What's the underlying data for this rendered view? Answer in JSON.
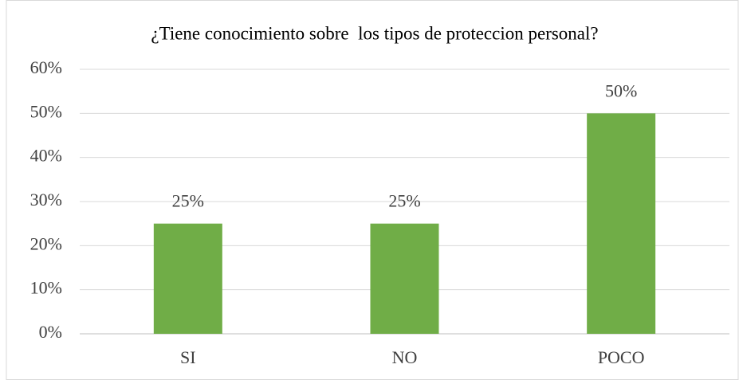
{
  "chart_data": {
    "type": "bar",
    "title": "¿Tiene conocimiento sobre  los tipos de proteccion personal?",
    "categories": [
      "SI",
      "NO",
      "POCO"
    ],
    "values": [
      25,
      25,
      50
    ],
    "value_labels": [
      "25%",
      "25%",
      "50%"
    ],
    "color": "#70ad47",
    "ylim": [
      0,
      60
    ],
    "yticks": [
      {
        "value": 0,
        "label": "0%"
      },
      {
        "value": 10,
        "label": "10%"
      },
      {
        "value": 20,
        "label": "20%"
      },
      {
        "value": 30,
        "label": "30%"
      },
      {
        "value": 40,
        "label": "40%"
      },
      {
        "value": 50,
        "label": "50%"
      },
      {
        "value": 60,
        "label": "60%"
      }
    ],
    "grid": true
  }
}
